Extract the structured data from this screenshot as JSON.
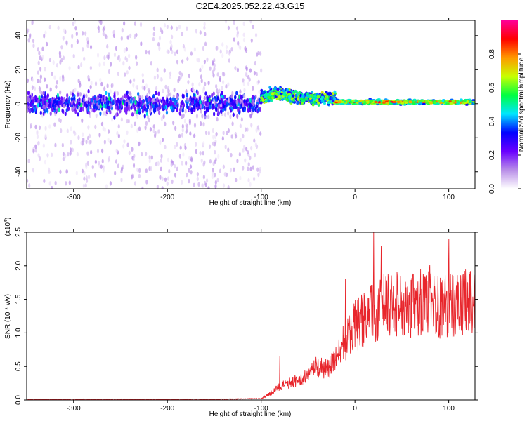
{
  "title": "C2E4.2025.052.22.43.G15",
  "chart_data": [
    {
      "type": "heatmap",
      "xlabel": "Height of straight line (km)",
      "ylabel": "Frequency (Hz)",
      "xlim": [
        -350,
        128
      ],
      "ylim": [
        -50,
        49
      ],
      "xticks": [
        -300,
        -200,
        -100,
        0,
        100
      ],
      "yticks": [
        -40,
        -20,
        0,
        20,
        40
      ],
      "grid": false,
      "colorbar": {
        "label": "Normalized spectral amplitude",
        "range": [
          0.0,
          1.0
        ],
        "ticks": [
          "0.0",
          "0.2",
          "0.4",
          "0.6",
          "0.8"
        ],
        "colors": [
          "#ffffff",
          "#b98ee8",
          "#6a00ff",
          "#0000ff",
          "#00e6ff",
          "#00ff40",
          "#c8ff00",
          "#ff9900",
          "#ff0000",
          "#ff0099"
        ]
      },
      "regions": [
        {
          "x": [
            -350,
            -100
          ],
          "description": "broadband",
          "band_hz": [
            -50,
            49
          ],
          "core_hz": [
            -8,
            8
          ],
          "max_amplitude": 0.35
        },
        {
          "x": [
            -100,
            -20
          ],
          "band_hz": [
            -5,
            10
          ],
          "max_amplitude": 0.6
        },
        {
          "x": [
            -20,
            128
          ],
          "band_hz": [
            -2,
            4
          ],
          "max_amplitude": 0.95
        }
      ]
    },
    {
      "type": "line",
      "xlabel": "Height of straight line (km)",
      "ylabel": "SNR (10 * v/v)",
      "y_multiplier": "(x10^4)",
      "xlim": [
        -350,
        128
      ],
      "ylim": [
        0.0,
        2.5
      ],
      "xticks": [
        -300,
        -200,
        -100,
        0,
        100
      ],
      "yticks": [
        "0.0",
        "0.5",
        "1.0",
        "1.5",
        "2.0",
        "2.5"
      ],
      "grid": false,
      "series": [
        {
          "color": "#e8262c",
          "x": [
            -350,
            -300,
            -250,
            -200,
            -150,
            -100,
            -90,
            -80,
            -70,
            -60,
            -50,
            -40,
            -30,
            -20,
            -10,
            0,
            10,
            20,
            30,
            40,
            50,
            60,
            70,
            80,
            90,
            100,
            110,
            120,
            128
          ],
          "y": [
            0.01,
            0.01,
            0.01,
            0.01,
            0.01,
            0.02,
            0.1,
            0.2,
            0.25,
            0.3,
            0.35,
            0.5,
            0.45,
            0.6,
            0.9,
            1.1,
            1.2,
            1.3,
            1.4,
            1.4,
            1.45,
            1.4,
            1.45,
            1.5,
            1.4,
            1.45,
            1.4,
            1.5,
            1.5
          ],
          "peak_spikes": [
            {
              "x": 20,
              "y": 2.5
            },
            {
              "x": 100,
              "y": 2.4
            },
            {
              "x": 28,
              "y": 2.3
            },
            {
              "x": -10,
              "y": 1.8
            },
            {
              "x": -80,
              "y": 0.65
            }
          ]
        }
      ]
    }
  ]
}
